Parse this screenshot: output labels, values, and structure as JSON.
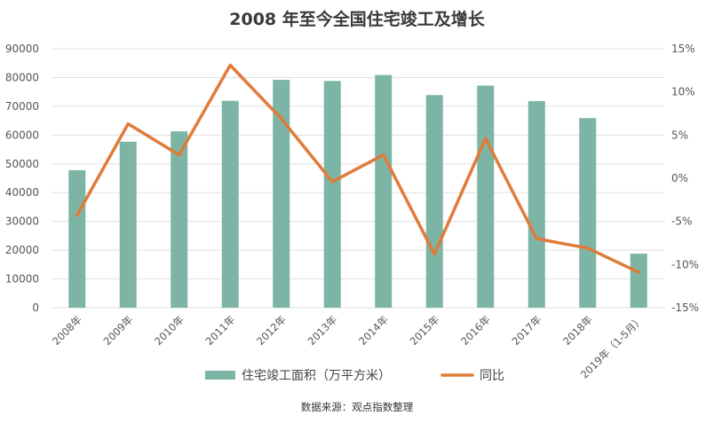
{
  "chart_data": {
    "type": "bar",
    "title": "2008 年至今全国住宅竣工及增长",
    "categories": [
      "2008年",
      "2009年",
      "2010年",
      "2011年",
      "2012年",
      "2013年",
      "2014年",
      "2015年",
      "2016年",
      "2017年",
      "2018年",
      "2019年（1-5月）"
    ],
    "series": [
      {
        "name": "住宅竣工面积（万平方米）",
        "type": "bar",
        "axis": "left",
        "color": "#7cb5a6",
        "values": [
          47800,
          57700,
          61300,
          71900,
          79200,
          78800,
          80900,
          73900,
          77200,
          71800,
          65900,
          18800
        ]
      },
      {
        "name": "同比",
        "type": "line",
        "axis": "right",
        "color": "#e07b39",
        "values": [
          -4.3,
          6.3,
          2.7,
          13.1,
          6.9,
          -0.4,
          2.7,
          -8.8,
          4.6,
          -7.0,
          -8.1,
          -10.9
        ]
      }
    ],
    "y_left": {
      "min": 0,
      "max": 90000,
      "ticks": [
        "0",
        "10000",
        "20000",
        "30000",
        "40000",
        "50000",
        "60000",
        "70000",
        "80000",
        "90000"
      ]
    },
    "y_right": {
      "min": -15,
      "max": 15,
      "ticks": [
        "-15%",
        "-10%",
        "-5%",
        "0%",
        "5%",
        "10%",
        "15%"
      ]
    },
    "grid": true,
    "legend_position": "bottom"
  },
  "source_note": "数据来源：观点指数整理"
}
